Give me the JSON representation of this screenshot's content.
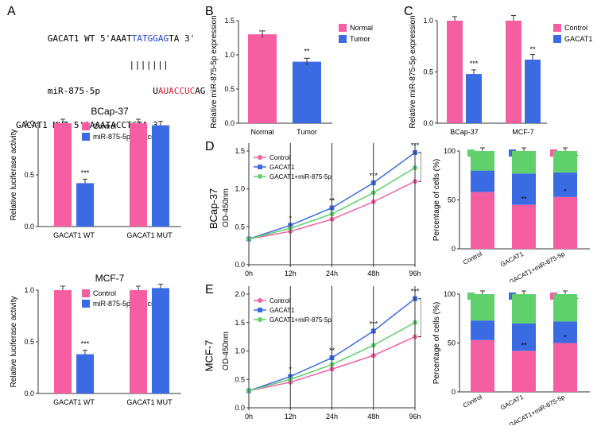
{
  "colors": {
    "pink": "#f55fa2",
    "blue": "#3b6be3",
    "green": "#5fd06b",
    "seq_blue": "#2040d0",
    "seq_red": "#d02030",
    "axis": "#333333"
  },
  "pA": {
    "label": "A",
    "seq1_pre": "GACAT1 WT 5'AAAT",
    "seq1_mid": "TATGGAG",
    "seq1_post": "TA 3'",
    "bars": "||||||| ",
    "seq2_pre": "miR-875-5p          U",
    "seq2_mid": "AUACCUC",
    "seq2_post": "AG",
    "seq3": "GACAT1 MUT 5'AAAATACCTCTA 3'",
    "lucif_charts": [
      {
        "title": "BCap-37",
        "wt_ctrl": 1.0,
        "wt_mim": 0.42,
        "mut_ctrl": 1.0,
        "mut_mim": 0.98,
        "stars": "***"
      },
      {
        "title": "MCF-7",
        "wt_ctrl": 1.0,
        "wt_mim": 0.38,
        "mut_ctrl": 1.0,
        "mut_mim": 1.02,
        "stars": "***"
      }
    ],
    "lucif_ylabel": "Relative luciferase activity",
    "lucif_legend": [
      "Control",
      "miR-875-5p mimics"
    ],
    "lucif_x": [
      "GACAT1 WT",
      "GACAT1 MUT"
    ],
    "lucif_ytick": 0.5,
    "lucif_ymax": 1.0
  },
  "pB": {
    "label": "B",
    "ylabel": "Relative miR-875-5p expression",
    "ymax": 1.5,
    "ytick": 0.5,
    "cats": [
      "Normal",
      "Tumor"
    ],
    "legend": [
      "Normal",
      "Tumor"
    ],
    "vals": [
      1.3,
      0.9
    ],
    "errs": [
      0.05,
      0.05
    ],
    "stars": "**"
  },
  "pC": {
    "label": "C",
    "ylabel": "Relative miR-875-5p expression",
    "ymax": 1.0,
    "ytick": 0.5,
    "groups": [
      "BCap-37",
      "MCF-7"
    ],
    "legend": [
      "Control",
      "GACAT1"
    ],
    "ctrl": [
      1.0,
      1.0
    ],
    "gac": [
      0.48,
      0.62
    ],
    "errs": [
      0.04,
      0.05
    ],
    "stars": [
      "***",
      "**"
    ]
  },
  "lineLegend": [
    "Control",
    "GACAT1",
    "GACAT1+miR-875-5p"
  ],
  "time": [
    "0h",
    "12h",
    "24h",
    "48h",
    "96h"
  ],
  "pD": {
    "label": "D",
    "row": "BCap-37",
    "ylabel": "OD-450nm",
    "ymax": 1.5,
    "ymin": 0.0,
    "ytick": 0.5,
    "ctrl": [
      0.34,
      0.44,
      0.6,
      0.83,
      1.1
    ],
    "gacat": [
      0.34,
      0.52,
      0.75,
      1.08,
      1.48
    ],
    "combo": [
      0.34,
      0.48,
      0.67,
      0.95,
      1.28
    ],
    "stars_gc": [
      "",
      "*",
      "**",
      "***",
      "***"
    ],
    "stars_cb": [
      "",
      "",
      "*",
      "**",
      "**"
    ]
  },
  "pE": {
    "label": "E",
    "row": "MCF-7",
    "ylabel": "OD-450nm",
    "ymax": 2.0,
    "ymin": 0.0,
    "ytick": 0.5,
    "ctrl": [
      0.3,
      0.45,
      0.68,
      0.92,
      1.25
    ],
    "gacat": [
      0.3,
      0.55,
      0.88,
      1.35,
      1.92
    ],
    "combo": [
      0.3,
      0.5,
      0.76,
      1.1,
      1.5
    ],
    "stars_gc": [
      "",
      "*",
      "**",
      "***",
      "***"
    ],
    "stars_cb": [
      "",
      "",
      "*",
      "**",
      "*"
    ]
  },
  "stack": {
    "ylabel": "Percentage of cells (%)",
    "ymax": 100,
    "ytick": 50,
    "cats": [
      "Control",
      "GACAT1",
      "GACAT1+miR-875-5p"
    ],
    "legend": [
      "G2/M",
      "S",
      "G0/G1"
    ],
    "D": {
      "g01": [
        58,
        45,
        53
      ],
      "s": [
        22,
        32,
        25
      ],
      "g2m": [
        20,
        23,
        22
      ],
      "stars_s": [
        "",
        "**",
        "*"
      ]
    },
    "E": {
      "g01": [
        53,
        42,
        50
      ],
      "s": [
        20,
        28,
        22
      ],
      "g2m": [
        27,
        30,
        28
      ],
      "stars_s": [
        "",
        "**",
        "*"
      ]
    }
  }
}
